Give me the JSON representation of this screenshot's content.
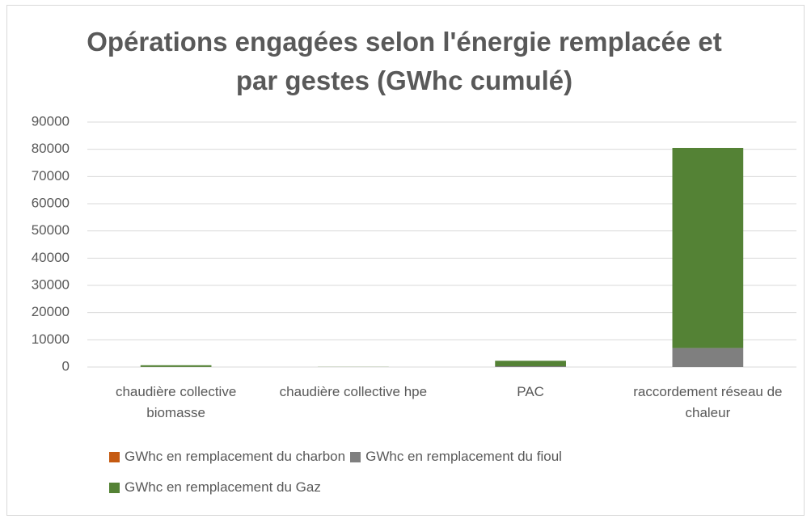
{
  "chart_data": {
    "type": "bar",
    "stacked": true,
    "title": "Opérations engagées selon l'énergie remplacée et par gestes (GWhc cumulé)",
    "categories": [
      "chaudière collective biomasse",
      "chaudière collective hpe",
      "PAC",
      "raccordement réseau de chaleur"
    ],
    "series": [
      {
        "name": "GWhc en remplacement du charbon",
        "color": "#c55a11",
        "values": [
          0,
          0,
          0,
          0
        ]
      },
      {
        "name": "GWhc en remplacement du fioul",
        "color": "#7f7f7f",
        "values": [
          50,
          0,
          300,
          7000
        ]
      },
      {
        "name": "GWhc en remplacement du Gaz",
        "color": "#548235",
        "values": [
          600,
          50,
          2000,
          73500
        ]
      }
    ],
    "ylim": [
      0,
      90000
    ],
    "yticks": [
      0,
      10000,
      20000,
      30000,
      40000,
      50000,
      60000,
      70000,
      80000,
      90000
    ],
    "grid": true,
    "legend": "bottom"
  }
}
